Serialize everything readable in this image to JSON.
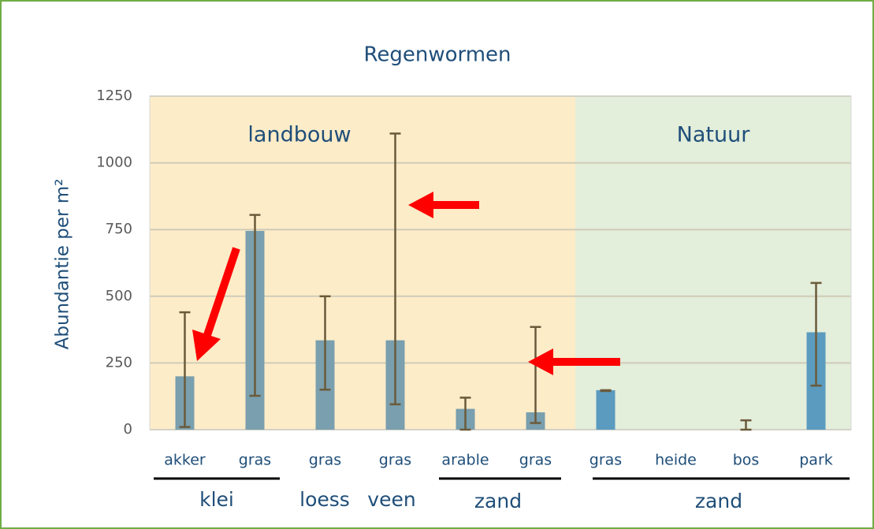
{
  "chart_data": {
    "type": "bar",
    "title": "Regenwormen",
    "y_label": "Abundantie per m²",
    "categories": [
      "akker",
      "gras",
      "gras",
      "gras",
      "arable",
      "gras",
      "gras",
      "heide",
      "bos",
      "park"
    ],
    "values": [
      200,
      745,
      335,
      335,
      78,
      65,
      148,
      0,
      0,
      365
    ],
    "colors": [
      "#7a9fae",
      "#7a9fae",
      "#7a9fae",
      "#7a9fae",
      "#7a9fae",
      "#7a9fae",
      "#5b9bbf",
      "#5b9bbf",
      "#5b9bbf",
      "#5b9bbf"
    ],
    "error_low": [
      10,
      127,
      150,
      95,
      0,
      25,
      145,
      null,
      0,
      165
    ],
    "error_high": [
      440,
      805,
      500,
      1110,
      120,
      385,
      148,
      null,
      35,
      550
    ],
    "error_color": "#6b5a3a",
    "ylim": [
      0,
      1250
    ],
    "yticks": [
      0,
      250,
      500,
      750,
      1000,
      1250
    ],
    "grid": true,
    "regions": [
      {
        "label": "landbouw",
        "color": "#fdecc8"
      },
      {
        "label": "Natuur",
        "color": "#e3eedb"
      }
    ],
    "groups": [
      "klei",
      "loess",
      "veen",
      "zand",
      "zand"
    ]
  }
}
